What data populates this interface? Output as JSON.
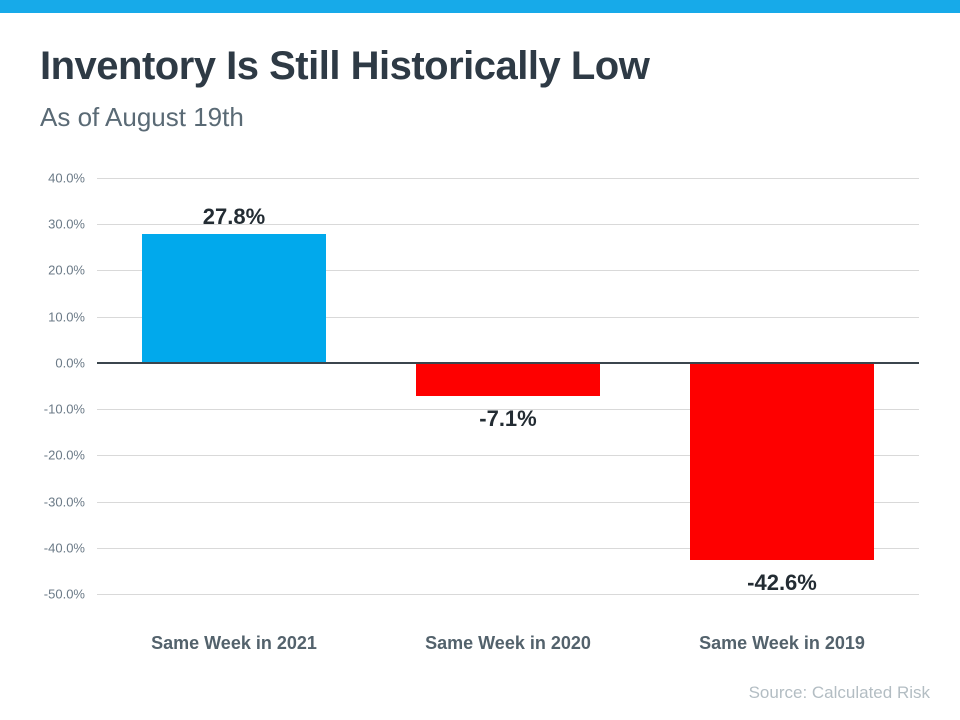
{
  "header": {
    "title": "Inventory Is Still Historically Low",
    "subtitle": "As of August 19th"
  },
  "theme": {
    "banner_color": "#17aae9",
    "positive_bar_color": "#01a9ec",
    "negative_bar_color": "#fe0000"
  },
  "chart_data": {
    "type": "bar",
    "title": "Inventory Is Still Historically Low",
    "subtitle": "As of August 19th",
    "categories": [
      "Same Week in 2021",
      "Same Week in 2020",
      "Same Week in 2019"
    ],
    "values": [
      27.8,
      -7.1,
      -42.6
    ],
    "data_labels": [
      "27.8%",
      "-7.1%",
      "-42.6%"
    ],
    "bar_colors": [
      "#01a9ec",
      "#fe0000",
      "#fe0000"
    ],
    "ylabel": "",
    "xlabel": "",
    "ylim": [
      -50,
      40
    ],
    "ytick_step": 10,
    "yticks": [
      {
        "value": 40,
        "label": "40.0%"
      },
      {
        "value": 30,
        "label": "30.0%"
      },
      {
        "value": 20,
        "label": "20.0%"
      },
      {
        "value": 10,
        "label": "10.0%"
      },
      {
        "value": 0,
        "label": "0.0%"
      },
      {
        "value": -10,
        "label": "-10.0%"
      },
      {
        "value": -20,
        "label": "-20.0%"
      },
      {
        "value": -30,
        "label": "-30.0%"
      },
      {
        "value": -40,
        "label": "-40.0%"
      },
      {
        "value": -50,
        "label": "-50.0%"
      }
    ],
    "grid": true,
    "legend": false,
    "source": "Source: Calculated Risk"
  }
}
